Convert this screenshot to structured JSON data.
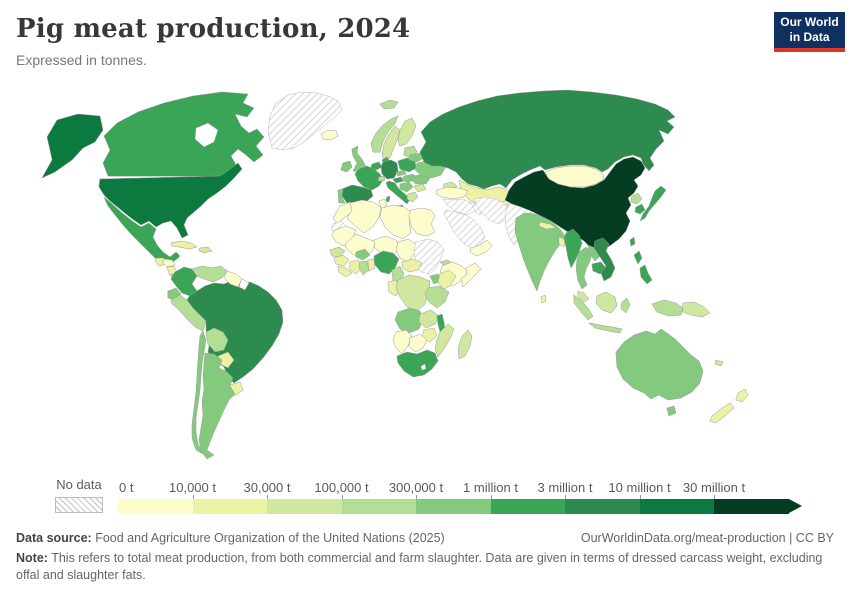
{
  "header": {
    "title": "Pig meat production, 2024",
    "subtitle": "Expressed in tonnes."
  },
  "logo": {
    "line1": "Our World",
    "line2": "in Data",
    "bg": "#10305f",
    "accent": "#dc352c"
  },
  "legend": {
    "no_data_label": "No data",
    "bins": [
      {
        "label": "0 t",
        "key": "bin_0t"
      },
      {
        "label": "10,000 t",
        "key": "bin_10k"
      },
      {
        "label": "30,000 t",
        "key": "bin_30k"
      },
      {
        "label": "100,000 t",
        "key": "bin_100k"
      },
      {
        "label": "300,000 t",
        "key": "bin_300k"
      },
      {
        "label": "1 million t",
        "key": "bin_1m"
      },
      {
        "label": "3 million t",
        "key": "bin_3m"
      },
      {
        "label": "10 million t",
        "key": "bin_10m"
      },
      {
        "label": "30 million t",
        "key": "bin_30m"
      }
    ]
  },
  "chart_data": {
    "type": "choropleth_map",
    "title": "Pig meat production, 2024",
    "unit": "tonnes",
    "bin_thresholds": [
      "0 t",
      "10,000 t",
      "30,000 t",
      "100,000 t",
      "300,000 t",
      "1 million t",
      "3 million t",
      "10 million t",
      "30 million t"
    ],
    "legend_position": "bottom"
  },
  "map": {
    "palette": {
      "bin_0t": "#fcfccd",
      "bin_10k": "#ebf2a3",
      "bin_30k": "#cfe79e",
      "bin_100k": "#b4dd95",
      "bin_300k": "#83ca7e",
      "bin_1m": "#3aa457",
      "bin_3m": "#2d8b4f",
      "bin_10m": "#0c7a3f",
      "bin_30m": "#053d22"
    },
    "countries": {
      "alaska": "bin_10m",
      "canada": "bin_1m",
      "greenland": "no_data",
      "usa": "bin_10m",
      "mexico": "bin_1m",
      "guatemala": "bin_10k",
      "honduras": "bin_0t",
      "nicaragua": "bin_10k",
      "costa_rica": "bin_100k",
      "panama": "bin_100k",
      "cuba": "bin_10k",
      "hispaniola": "bin_30k",
      "colombia": "bin_1m",
      "venezuela": "bin_100k",
      "guianas": "bin_0t",
      "french_guiana": "white",
      "ecuador": "bin_300k",
      "peru": "bin_100k",
      "brazil": "bin_3m",
      "bolivia": "bin_100k",
      "paraguay": "bin_10k",
      "uruguay": "bin_10k",
      "argentina": "bin_300k",
      "chile": "bin_300k",
      "iceland": "bin_0t",
      "svalbard": "bin_100k",
      "ireland": "bin_300k",
      "uk": "bin_300k",
      "norway": "bin_100k",
      "sweden": "bin_30k",
      "finland": "bin_30k",
      "baltics": "bin_100k",
      "denmark": "bin_1m",
      "benelux": "bin_1m",
      "germany": "bin_3m",
      "france": "bin_1m",
      "spain": "bin_3m",
      "portugal": "bin_300k",
      "italy": "bin_1m",
      "sicily": "bin_1m",
      "sardinia": "bin_1m",
      "switzerland": "bin_100k",
      "austria": "bin_1m",
      "czechia": "bin_300k",
      "poland": "bin_1m",
      "slovakia_hungary": "bin_300k",
      "balkans": "bin_300k",
      "greece": "bin_30k",
      "bulgaria": "bin_30k",
      "romania": "bin_300k",
      "ukraine": "bin_300k",
      "belarus": "bin_300k",
      "russia": "bin_3m",
      "kazakhstan": "bin_10k",
      "uzbekistan": "bin_0t",
      "turkmenistan": "no_data",
      "kyrgyzstan": "bin_10k",
      "caucasus": "bin_30k",
      "turkey": "bin_0t",
      "syria_iraq": "no_data",
      "saudi_arabia": "no_data",
      "yemen_oman": "bin_0t",
      "iran": "no_data",
      "afghanistan_pakistan": "no_data",
      "morocco": "bin_0t",
      "western_sahara": "no_data",
      "algeria": "bin_0t",
      "tunisia": "bin_0t",
      "libya": "bin_0t",
      "egypt": "bin_0t",
      "mauritania": "bin_0t",
      "mali": "bin_0t",
      "niger": "bin_0t",
      "chad": "bin_0t",
      "sudan": "no_data",
      "eritrea": "bin_100k",
      "ethiopia": "bin_0t",
      "somalia": "bin_0t",
      "senegal": "bin_30k",
      "guinea": "bin_10k",
      "sierra_leone_liberia": "bin_10k",
      "ivory_coast": "bin_10k",
      "burkina_faso": "bin_300k",
      "ghana": "bin_100k",
      "togo_benin": "bin_10k",
      "nigeria": "bin_1m",
      "cameroon": "bin_100k",
      "central_african_republic": "bin_10k",
      "gabon_congo": "bin_10k",
      "drc": "bin_30k",
      "uganda": "bin_300k",
      "kenya": "bin_10k",
      "tanzania": "bin_100k",
      "angola": "bin_300k",
      "zambia": "bin_30k",
      "malawi": "bin_1m",
      "mozambique": "bin_30k",
      "zimbabwe": "bin_10k",
      "madagascar": "bin_30k",
      "namibia": "bin_0t",
      "botswana": "bin_0t",
      "south_africa": "bin_1m",
      "lesotho": "white",
      "india": "bin_300k",
      "sri_lanka": "bin_10k",
      "nepal": "bin_10k",
      "bangladesh": "bin_10k",
      "myanmar": "bin_1m",
      "thailand": "bin_300k",
      "laos": "bin_300k",
      "cambodia": "bin_1m",
      "vietnam": "bin_3m",
      "malaysia": "bin_30k",
      "sumatra": "bin_100k",
      "java": "bin_100k",
      "borneo": "bin_30k",
      "sulawesi": "bin_100k",
      "west_papua": "bin_100k",
      "papua_new_guinea": "bin_30k",
      "philippines_north": "bin_1m",
      "philippines_south": "bin_1m",
      "taiwan": "bin_1m",
      "china": "bin_30m",
      "mongolia": "bin_0t",
      "north_korea": "bin_100k",
      "south_korea": "bin_1m",
      "japan": "bin_1m",
      "australia": "bin_300k",
      "tasmania": "bin_300k",
      "new_zealand_north": "bin_10k",
      "new_zealand_south": "bin_10k",
      "new_caledonia": "bin_30k"
    }
  },
  "footer": {
    "source_label": "Data source:",
    "source_text": " Food and Agriculture Organization of the United Nations (2025)",
    "link_text": "OurWorldinData.org/meat-production | CC BY",
    "note_label": "Note:",
    "note_text": " This refers to total meat production, from both commercial and farm slaughter. Data are given in terms of dressed carcass weight, excluding offal and slaughter fats."
  }
}
